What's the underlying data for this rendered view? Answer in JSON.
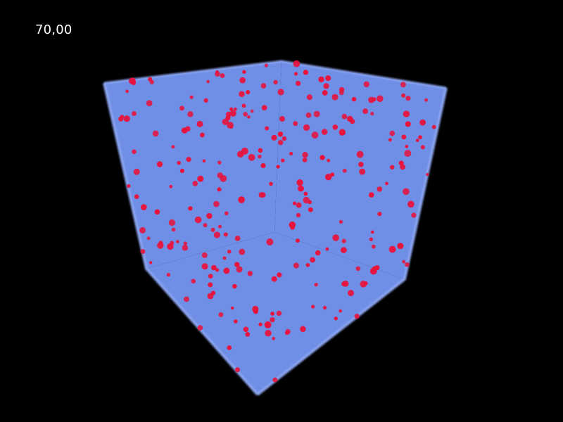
{
  "hud": {
    "value_readout": "70,00"
  },
  "scene": {
    "background_color": "#000000",
    "cube_face_color": "#6f8fe6",
    "cube_edge_color": "#8fa7f2",
    "particle_color": "#e8123b",
    "particle_count": 260
  }
}
